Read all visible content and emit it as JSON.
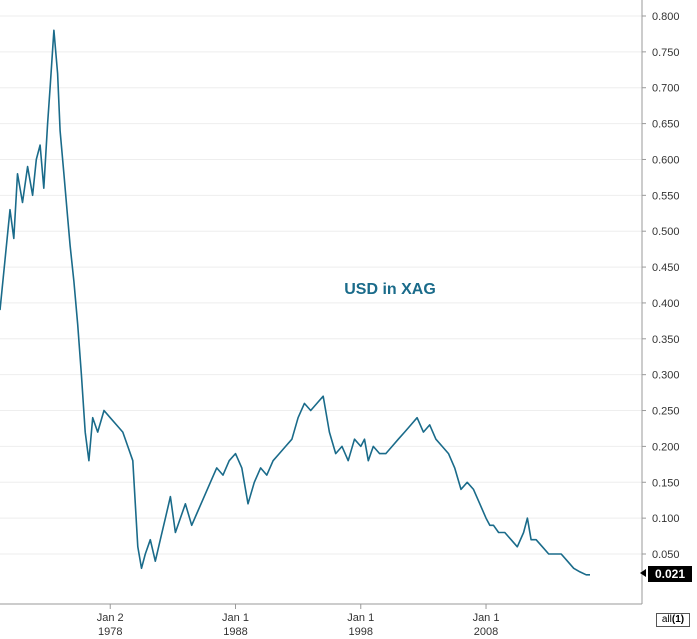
{
  "chart_data": {
    "type": "line",
    "title": "USD in XAG",
    "title_color": "#1a6b8a",
    "line_color": "#1a6b8a",
    "xlabel": "",
    "ylabel": "",
    "ylim": [
      0.0,
      0.8
    ],
    "y_ticks": [
      "0.800",
      "0.750",
      "0.700",
      "0.650",
      "0.600",
      "0.550",
      "0.500",
      "0.450",
      "0.400",
      "0.350",
      "0.300",
      "0.250",
      "0.200",
      "0.150",
      "0.100",
      "0.050"
    ],
    "x_ticks": [
      {
        "year": 1978.0,
        "label_top": "Jan 2",
        "label_bottom": "1978"
      },
      {
        "year": 1988.0,
        "label_top": "Jan 1",
        "label_bottom": "1988"
      },
      {
        "year": 1998.0,
        "label_top": "Jan 1",
        "label_bottom": "1998"
      },
      {
        "year": 2008.0,
        "label_top": "Jan 1",
        "label_bottom": "2008"
      }
    ],
    "xlim": [
      1969.2,
      2016.3
    ],
    "last_value": "0.021",
    "series": [
      {
        "name": "USD in XAG",
        "x": [
          1969.2,
          1969.6,
          1970.0,
          1970.3,
          1970.6,
          1971.0,
          1971.4,
          1971.8,
          1972.1,
          1972.4,
          1972.7,
          1973.0,
          1973.2,
          1973.5,
          1973.8,
          1974.0,
          1974.3,
          1974.6,
          1974.8,
          1975.1,
          1975.4,
          1975.7,
          1976.0,
          1976.3,
          1976.6,
          1977.0,
          1977.5,
          1978.0,
          1978.5,
          1979.0,
          1979.4,
          1979.8,
          1980.0,
          1980.2,
          1980.5,
          1980.8,
          1981.2,
          1981.6,
          1982.0,
          1982.4,
          1982.8,
          1983.2,
          1983.6,
          1984.0,
          1984.5,
          1985.0,
          1985.5,
          1986.0,
          1986.5,
          1987.0,
          1987.5,
          1988.0,
          1988.5,
          1989.0,
          1989.5,
          1990.0,
          1990.5,
          1991.0,
          1991.5,
          1992.0,
          1992.5,
          1993.0,
          1993.5,
          1994.0,
          1994.5,
          1995.0,
          1995.5,
          1996.0,
          1996.5,
          1997.0,
          1997.5,
          1998.0,
          1998.3,
          1998.6,
          1999.0,
          1999.5,
          2000.0,
          2000.5,
          2001.0,
          2001.5,
          2002.0,
          2002.5,
          2003.0,
          2003.5,
          2004.0,
          2004.5,
          2005.0,
          2005.5,
          2006.0,
          2006.5,
          2007.0,
          2007.5,
          2008.0,
          2008.3,
          2008.6,
          2009.0,
          2009.5,
          2010.0,
          2010.5,
          2011.0,
          2011.3,
          2011.6,
          2012.0,
          2012.5,
          2013.0,
          2013.5,
          2014.0,
          2014.5,
          2015.0,
          2015.5,
          2016.0,
          2016.3
        ],
        "values": [
          0.39,
          0.46,
          0.53,
          0.49,
          0.58,
          0.54,
          0.59,
          0.55,
          0.6,
          0.62,
          0.56,
          0.65,
          0.7,
          0.78,
          0.72,
          0.64,
          0.58,
          0.52,
          0.48,
          0.43,
          0.37,
          0.3,
          0.22,
          0.18,
          0.24,
          0.22,
          0.25,
          0.24,
          0.23,
          0.22,
          0.2,
          0.18,
          0.12,
          0.06,
          0.03,
          0.05,
          0.07,
          0.04,
          0.07,
          0.1,
          0.13,
          0.08,
          0.1,
          0.12,
          0.09,
          0.11,
          0.13,
          0.15,
          0.17,
          0.16,
          0.18,
          0.19,
          0.17,
          0.12,
          0.15,
          0.17,
          0.16,
          0.18,
          0.19,
          0.2,
          0.21,
          0.24,
          0.26,
          0.25,
          0.26,
          0.27,
          0.22,
          0.19,
          0.2,
          0.18,
          0.21,
          0.2,
          0.21,
          0.18,
          0.2,
          0.19,
          0.19,
          0.2,
          0.21,
          0.22,
          0.23,
          0.24,
          0.22,
          0.23,
          0.21,
          0.2,
          0.19,
          0.17,
          0.14,
          0.15,
          0.14,
          0.12,
          0.1,
          0.09,
          0.09,
          0.08,
          0.08,
          0.07,
          0.06,
          0.08,
          0.1,
          0.07,
          0.07,
          0.06,
          0.05,
          0.05,
          0.05,
          0.04,
          0.03,
          0.025,
          0.021,
          0.021
        ]
      }
    ]
  },
  "range_button": {
    "label": "all",
    "count": "(1)"
  }
}
